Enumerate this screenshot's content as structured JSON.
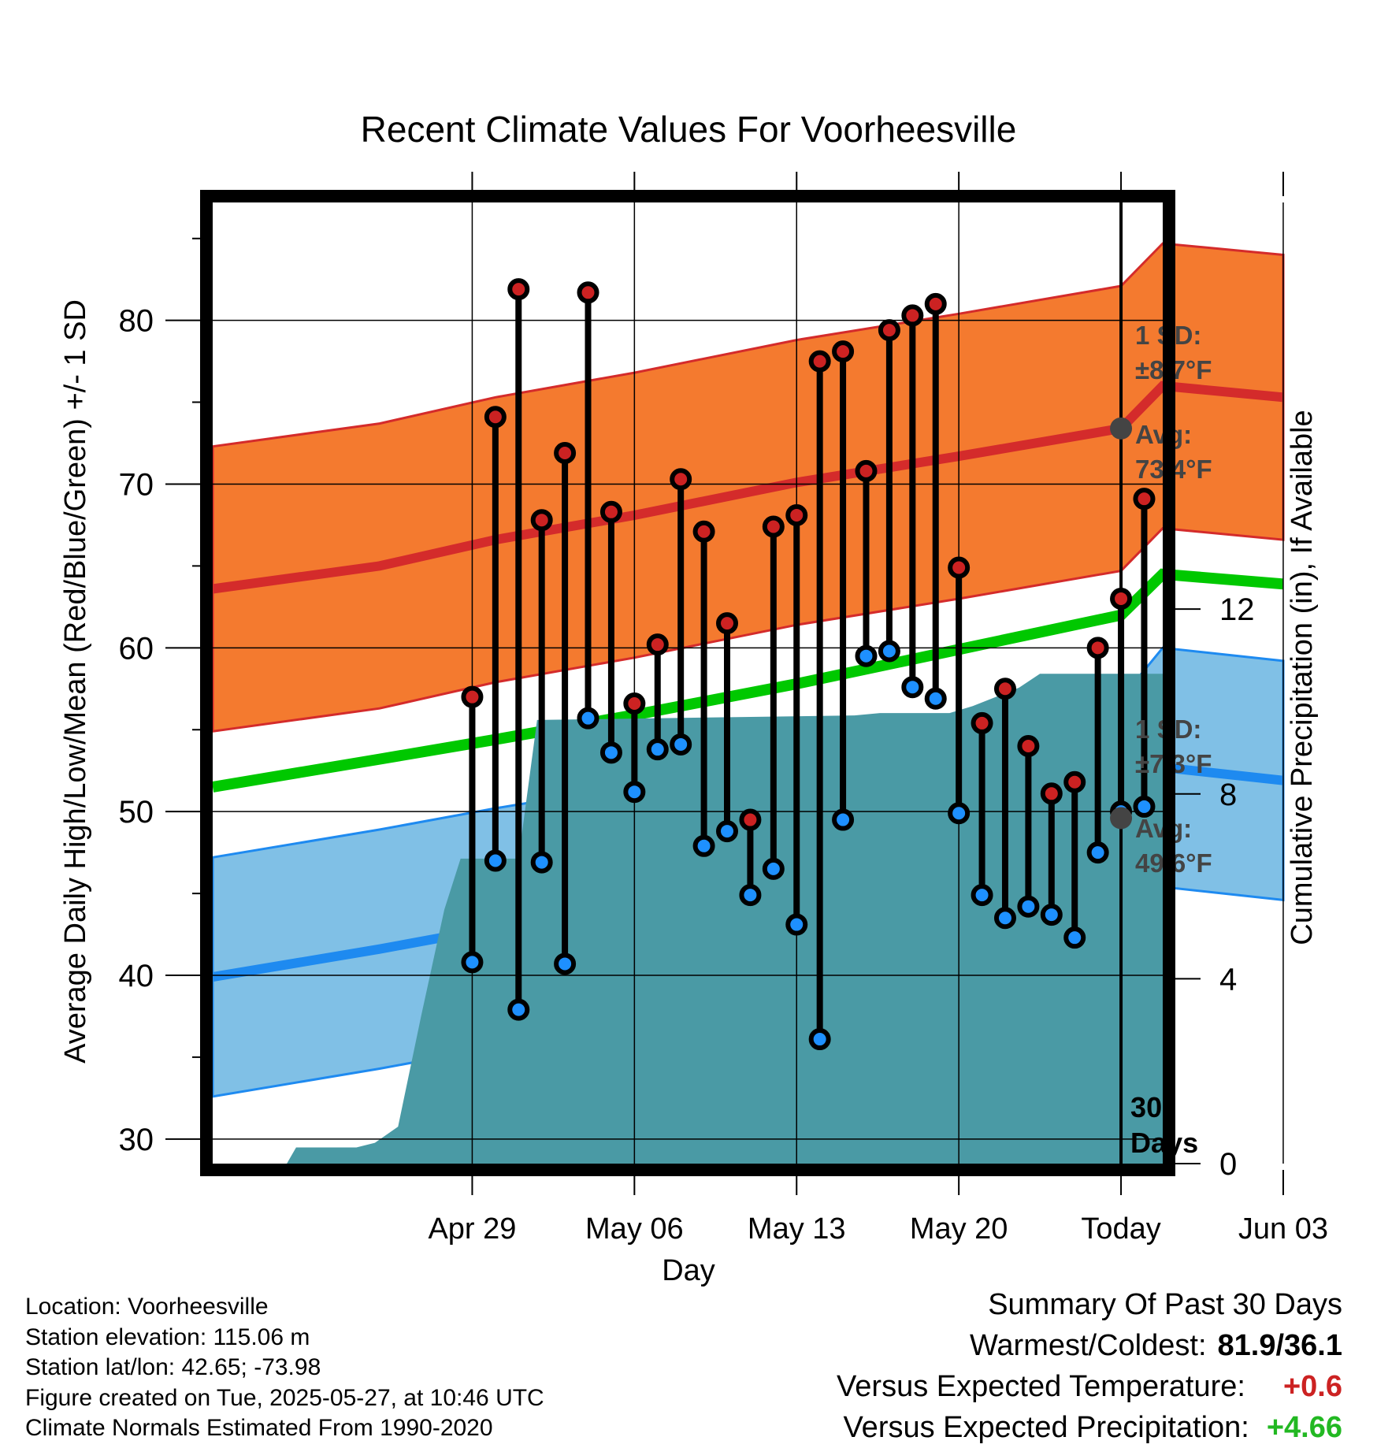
{
  "chart_data": {
    "type": "line",
    "title": "Recent Climate Values For Voorheesville",
    "xlabel": "Day",
    "ylabel": "Average Daily High/Low/Mean (Red/Blue/Green) +/- 1 SD",
    "y2label": "Cumulative Precipitation (in), If Available",
    "ylim": [
      28.5,
      87.2
    ],
    "y2lim": [
      0,
      20.8
    ],
    "y_ticks": [
      "30",
      "40",
      "50",
      "60",
      "70",
      "80"
    ],
    "y2_ticks": [
      "0",
      "4",
      "8",
      "12"
    ],
    "x_ticks": [
      "Apr 29",
      "May 06",
      "May 13",
      "May 20",
      "Today",
      "Jun 03"
    ],
    "x_tick_days": [
      4,
      11,
      18,
      25,
      32,
      39
    ],
    "x_range_days": [
      -7.2,
      33.8
    ],
    "today_day": 32,
    "today_label": "30 Days",
    "days": [
      {
        "date": "2025-04-26",
        "high": 57.0,
        "low": 40.8
      },
      {
        "date": "2025-04-27",
        "high": 74.1,
        "low": 47.0
      },
      {
        "date": "2025-04-28",
        "high": 81.9,
        "low": 37.9
      },
      {
        "date": "2025-04-29",
        "high": 67.8,
        "low": 46.9
      },
      {
        "date": "2025-04-30",
        "high": 71.9,
        "low": 40.7
      },
      {
        "date": "2025-05-01",
        "high": 81.7,
        "low": 55.7
      },
      {
        "date": "2025-05-02",
        "high": 68.3,
        "low": 53.6
      },
      {
        "date": "2025-05-03",
        "high": 56.6,
        "low": 51.2
      },
      {
        "date": "2025-05-04",
        "high": 60.2,
        "low": 53.8
      },
      {
        "date": "2025-05-05",
        "high": 70.3,
        "low": 54.1
      },
      {
        "date": "2025-05-06",
        "high": 67.1,
        "low": 47.9
      },
      {
        "date": "2025-05-07",
        "high": 61.5,
        "low": 48.8
      },
      {
        "date": "2025-05-08",
        "high": 49.5,
        "low": 44.9
      },
      {
        "date": "2025-05-09",
        "high": 67.4,
        "low": 46.5
      },
      {
        "date": "2025-05-10",
        "high": 68.1,
        "low": 43.1
      },
      {
        "date": "2025-05-11",
        "high": 77.5,
        "low": 36.1
      },
      {
        "date": "2025-05-12",
        "high": 78.1,
        "low": 49.5
      },
      {
        "date": "2025-05-13",
        "high": 70.8,
        "low": 59.5
      },
      {
        "date": "2025-05-14",
        "high": 79.4,
        "low": 59.8
      },
      {
        "date": "2025-05-15",
        "high": 80.3,
        "low": 57.6
      },
      {
        "date": "2025-05-16",
        "high": 81.0,
        "low": 56.9
      },
      {
        "date": "2025-05-17",
        "high": 64.9,
        "low": 49.9
      },
      {
        "date": "2025-05-18",
        "high": 55.4,
        "low": 44.9
      },
      {
        "date": "2025-05-19",
        "high": 57.5,
        "low": 43.5
      },
      {
        "date": "2025-05-20",
        "high": 54.0,
        "low": 44.2
      },
      {
        "date": "2025-05-21",
        "high": 51.1,
        "low": 43.7
      },
      {
        "date": "2025-05-22",
        "high": 51.8,
        "low": 42.3
      },
      {
        "date": "2025-05-23",
        "high": 60.0,
        "low": 47.5
      },
      {
        "date": "2025-05-24",
        "high": 63.0,
        "low": 50.0
      },
      {
        "date": "2025-05-25",
        "high": 69.1,
        "low": 50.3
      }
    ],
    "normals": {
      "days": [
        -7.2,
        0,
        5,
        11,
        18,
        25,
        32,
        39,
        33.8
      ],
      "avg_high": [
        63.6,
        65.0,
        66.6,
        68.1,
        70.1,
        71.7,
        73.4,
        75.3,
        76.0
      ],
      "avg_low": [
        39.9,
        41.6,
        42.9,
        44.3,
        46.0,
        47.8,
        49.6,
        51.9,
        52.7
      ],
      "avg_mean": [
        51.5,
        53.2,
        54.4,
        55.9,
        57.8,
        59.9,
        62.0,
        63.9,
        64.5
      ]
    },
    "high_sd": 8.7,
    "low_sd": 7.3,
    "precip_cumulative": [
      [
        -7.2,
        0
      ],
      [
        -4,
        0
      ],
      [
        -3.6,
        0.35
      ],
      [
        -1,
        0.35
      ],
      [
        -0.2,
        0.45
      ],
      [
        0.8,
        0.8
      ],
      [
        1.8,
        3.2
      ],
      [
        2.8,
        5.5
      ],
      [
        3.5,
        6.6
      ],
      [
        6,
        6.6
      ],
      [
        6.8,
        9.6
      ],
      [
        20.5,
        9.7
      ],
      [
        21.6,
        9.75
      ],
      [
        24.6,
        9.75
      ],
      [
        25.6,
        9.9
      ],
      [
        26.6,
        10.1
      ],
      [
        27.6,
        10.3
      ],
      [
        28.5,
        10.6
      ],
      [
        33.8,
        10.6
      ]
    ],
    "annotations": {
      "high_sd_label": "1 SD:",
      "high_sd_value": "±8.7°F",
      "high_avg_label": "Avg:",
      "high_avg_value": "73.4°F",
      "low_sd_label": "1 SD:",
      "low_sd_value": "±7.3°F",
      "low_avg_label": "Avg:",
      "low_avg_value": "49.6°F",
      "days_line1": "30",
      "days_line2": "Days"
    },
    "colors": {
      "high_band": "#f47a2f",
      "high_line": "#d42b2b",
      "low_band": "#80c0e6",
      "low_line": "#1e8af0",
      "mean_line": "#00c800",
      "precip": "#4a9aa5",
      "high_marker": "#cc2222",
      "low_marker": "#1e90ff"
    }
  },
  "info": {
    "location": "Location: Voorheesville",
    "elevation": "Station elevation: 115.06 m",
    "latlon": "Station lat/lon: 42.65; -73.98",
    "created": "Figure created on Tue, 2025-05-27, at 10:46 UTC",
    "normals": "Climate Normals Estimated From 1990-2020"
  },
  "summary": {
    "heading": "Summary Of Past 30 Days",
    "warmest_label": "Warmest/Coldest:",
    "warmest_value": "81.9/36.1",
    "temp_label": "Versus Expected Temperature:",
    "temp_value": "+0.6",
    "temp_color": "#cc2222",
    "precip_label": "Versus Expected Precipitation:",
    "precip_value": "+4.66",
    "precip_color": "#22b822"
  }
}
